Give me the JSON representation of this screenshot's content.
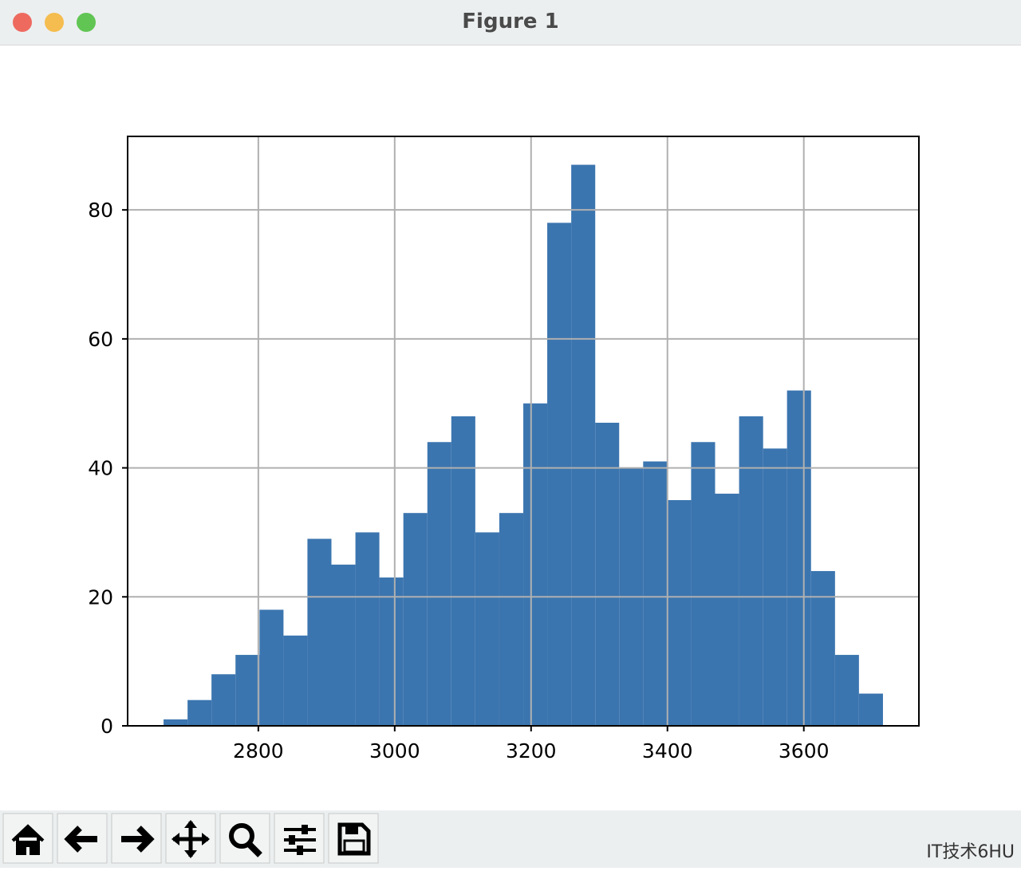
{
  "window": {
    "title": "Figure 1"
  },
  "chart_data": {
    "type": "histogram",
    "bins": [
      2661.0,
      2696.2,
      2731.3,
      2766.5,
      2801.7,
      2836.9,
      2872.0,
      2907.2,
      2942.4,
      2977.5,
      3012.7,
      3047.9,
      3083.0,
      3118.2,
      3153.4,
      3188.6,
      3223.7,
      3258.9,
      3294.1,
      3329.2,
      3364.4,
      3399.6,
      3434.7,
      3469.9,
      3505.1,
      3540.3,
      3575.4,
      3610.6,
      3645.8,
      3680.9,
      3716.1
    ],
    "values": [
      1,
      4,
      8,
      11,
      18,
      14,
      29,
      25,
      30,
      23,
      33,
      44,
      48,
      30,
      33,
      50,
      78,
      87,
      47,
      40,
      41,
      35,
      44,
      36,
      48,
      43,
      52,
      24,
      11,
      5
    ],
    "color": "#3b75af",
    "xlim": [
      2608.3,
      3768.8
    ],
    "xticks": [
      2800,
      3000,
      3200,
      3400,
      3600
    ],
    "ylim": [
      0,
      91.4
    ],
    "yticks": [
      0,
      20,
      40,
      60,
      80
    ],
    "grid": true
  },
  "watermark": "IT技术6HU"
}
